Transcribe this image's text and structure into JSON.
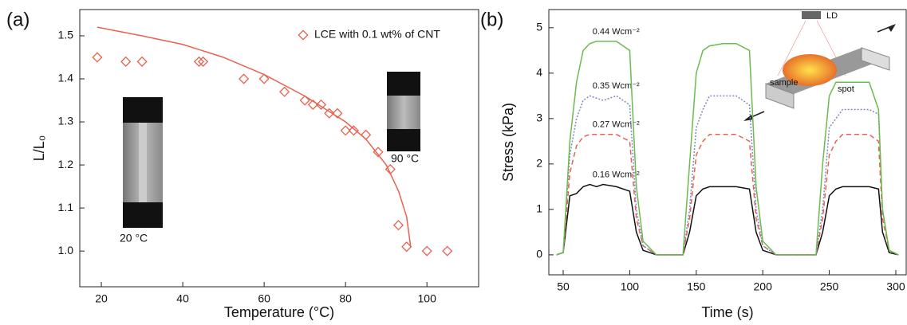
{
  "chart_data": [
    {
      "type": "scatter",
      "panel": "(a)",
      "xlabel": "Temperature (°C)",
      "ylabel": "L/L₀",
      "xlim": [
        14.7,
        112.7
      ],
      "ylim": [
        0.917,
        1.561
      ],
      "xticks": [
        20,
        40,
        60,
        80,
        100
      ],
      "yticks": [
        {
          "value": 1.0,
          "label": "1.0"
        },
        {
          "value": 1.1,
          "label": "1.1"
        },
        {
          "value": 1.2,
          "label": "1.2"
        },
        {
          "value": 1.3,
          "label": "1.3"
        },
        {
          "value": 1.4,
          "label": "1.4"
        },
        {
          "value": 1.5,
          "label": "1.5"
        }
      ],
      "series": [
        {
          "name": "LCE with 0.1 wt% of CNT",
          "color": "#e8624f",
          "x": [
            19,
            26,
            30,
            44,
            45,
            55,
            60,
            65,
            70,
            72,
            74,
            76,
            78,
            80,
            82,
            85,
            88,
            91,
            93,
            95,
            100,
            105
          ],
          "values": [
            1.45,
            1.44,
            1.44,
            1.44,
            1.44,
            1.4,
            1.4,
            1.37,
            1.35,
            1.34,
            1.34,
            1.32,
            1.32,
            1.28,
            1.28,
            1.27,
            1.23,
            1.19,
            1.06,
            1.01,
            1.0,
            1.0
          ]
        }
      ],
      "fit": {
        "color": "#e8624f",
        "x": [
          19,
          30,
          40,
          50,
          60,
          70,
          80,
          85,
          90,
          93,
          95,
          96
        ],
        "values": [
          1.52,
          1.5,
          1.48,
          1.45,
          1.41,
          1.36,
          1.3,
          1.26,
          1.2,
          1.14,
          1.08,
          1.01
        ]
      },
      "annotations": [
        "20 °C",
        "90 °C"
      ]
    },
    {
      "type": "line",
      "panel": "(b)",
      "xlabel": "Time (s)",
      "ylabel": "Stress (kPa)",
      "xlim": [
        39.2,
        307.8
      ],
      "ylim": [
        -0.44,
        5.4
      ],
      "xticks": [
        50,
        100,
        150,
        200,
        250,
        300
      ],
      "yticks": [
        0,
        1,
        2,
        3,
        4,
        5
      ],
      "x": [
        45,
        50,
        55,
        60,
        65,
        70,
        75,
        80,
        90,
        100,
        105,
        110,
        120,
        140,
        145,
        150,
        155,
        160,
        170,
        180,
        190,
        195,
        200,
        210,
        240,
        245,
        250,
        255,
        260,
        270,
        280,
        287,
        290,
        295,
        302
      ],
      "series": [
        {
          "name": "0.16 Wcm⁻²",
          "color": "#111111",
          "dash": "none",
          "values": [
            0,
            0.05,
            1.3,
            1.35,
            1.5,
            1.55,
            1.5,
            1.55,
            1.5,
            1.4,
            0.5,
            0.1,
            0,
            0,
            0.5,
            1.3,
            1.45,
            1.5,
            1.5,
            1.5,
            1.45,
            0.5,
            0.1,
            0,
            0,
            0.5,
            1.3,
            1.45,
            1.5,
            1.5,
            1.5,
            1.45,
            0.5,
            0.05,
            0
          ]
        },
        {
          "name": "0.27 Wcm⁻²",
          "color": "#e8624f",
          "dash": "6 4",
          "values": [
            0,
            0.05,
            1.8,
            2.4,
            2.6,
            2.65,
            2.65,
            2.65,
            2.65,
            2.5,
            0.8,
            0.2,
            0,
            0,
            0.8,
            2.2,
            2.5,
            2.65,
            2.65,
            2.65,
            2.5,
            0.8,
            0.2,
            0,
            0,
            0.8,
            2.2,
            2.5,
            2.65,
            2.65,
            2.65,
            2.5,
            0.8,
            0.1,
            0
          ]
        },
        {
          "name": "0.35 Wcm⁻²",
          "color": "#7f86c8",
          "dash": "2 2",
          "values": [
            0,
            0.05,
            2.2,
            3.0,
            3.4,
            3.5,
            3.45,
            3.4,
            3.5,
            3.3,
            1.0,
            0.2,
            0,
            0,
            1.0,
            2.8,
            3.2,
            3.5,
            3.5,
            3.5,
            3.3,
            1.0,
            0.2,
            0,
            0,
            1.0,
            2.8,
            3.0,
            3.2,
            3.2,
            3.2,
            3.1,
            1.0,
            0.1,
            0
          ]
        },
        {
          "name": "0.44 Wcm⁻²",
          "color": "#6cbb4e",
          "dash": "none",
          "values": [
            0,
            0.05,
            2.5,
            3.8,
            4.5,
            4.65,
            4.7,
            4.7,
            4.7,
            4.5,
            1.5,
            0.3,
            0,
            0,
            2.0,
            4.0,
            4.5,
            4.6,
            4.65,
            4.65,
            4.5,
            1.5,
            0.3,
            0,
            0,
            2.0,
            3.5,
            3.8,
            3.8,
            3.8,
            3.8,
            3.2,
            1.0,
            0.1,
            0
          ]
        }
      ],
      "annotations": [
        "LD",
        "sample",
        "spot"
      ]
    }
  ]
}
